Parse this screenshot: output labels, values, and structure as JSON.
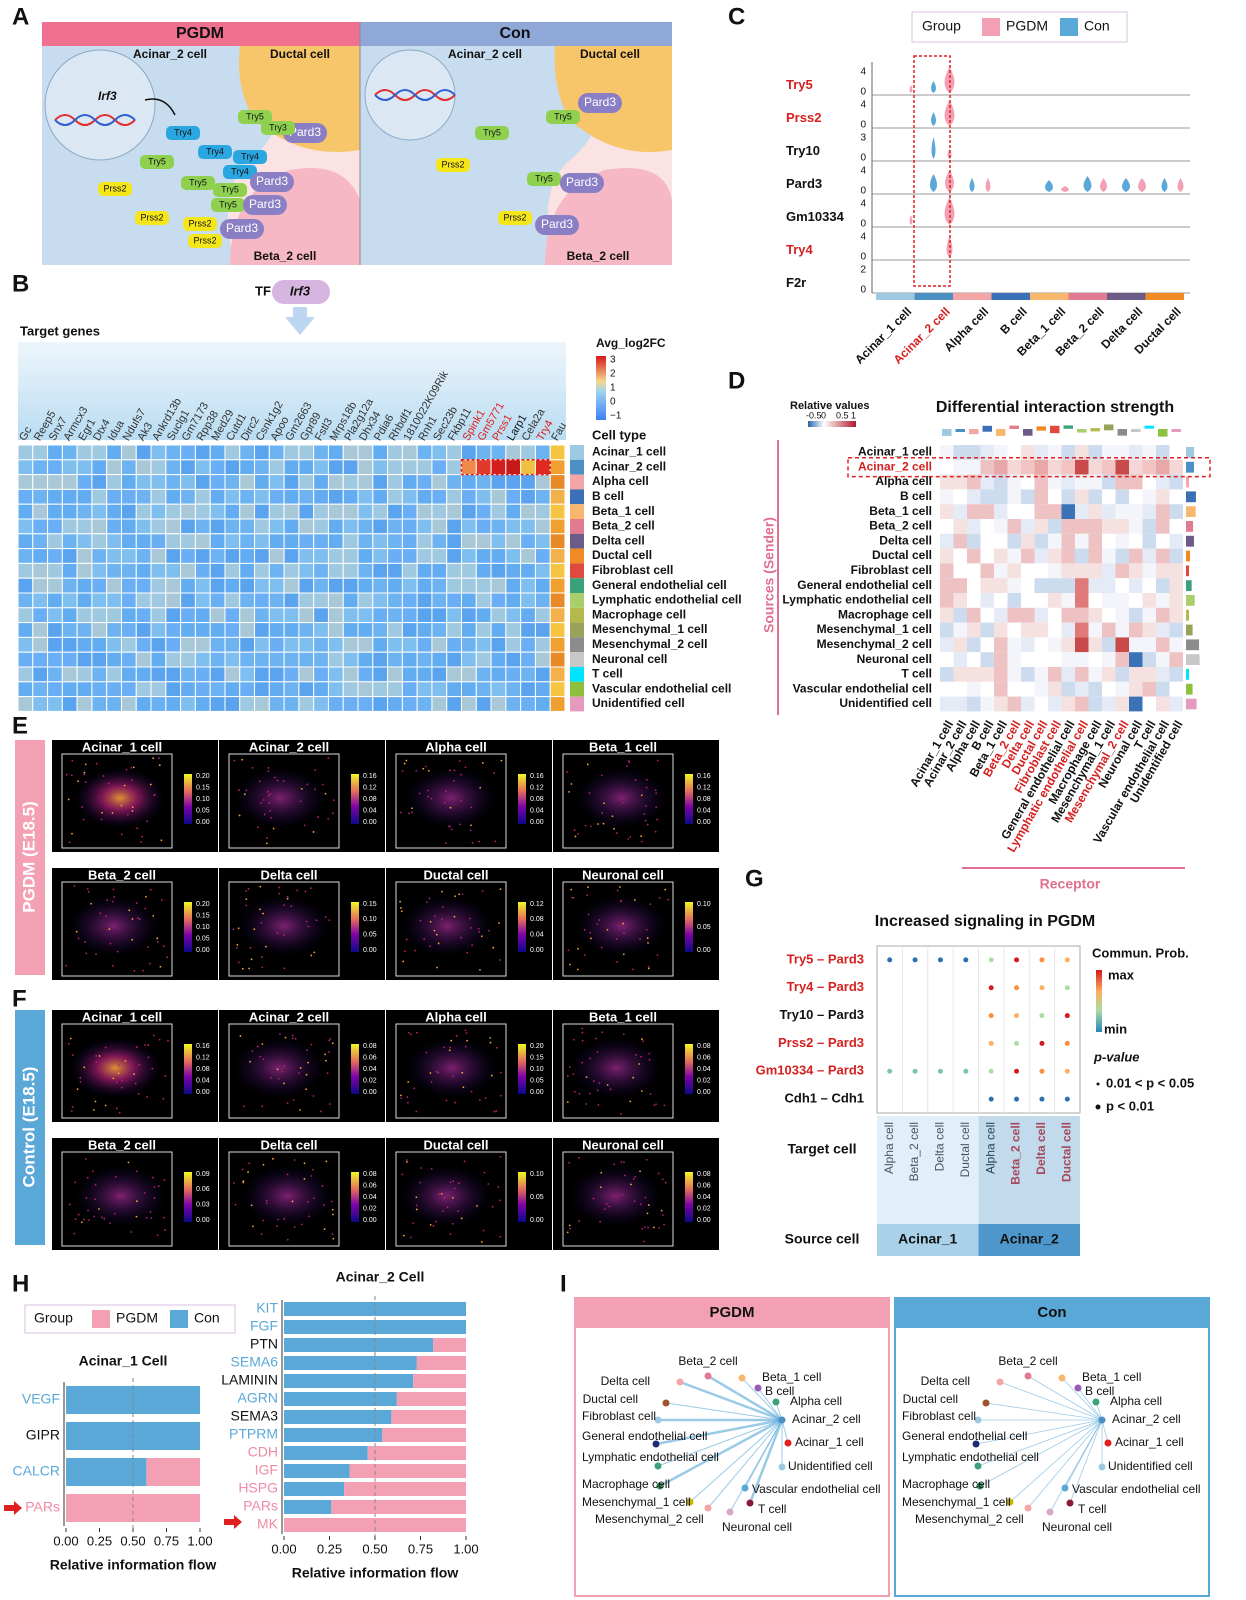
{
  "panel_labels": [
    "A",
    "B",
    "C",
    "D",
    "E",
    "F",
    "G",
    "H",
    "I"
  ],
  "A": {
    "pgdm_title": "PGDM",
    "con_title": "Con",
    "pgdm_texts": [
      "Acinar_2 cell",
      "Ductal cell",
      "Beta_2 cell",
      "Irf3"
    ],
    "con_texts": [
      "Acinar_2 cell",
      "Ductal cell",
      "Beta_2 cell"
    ],
    "pgdm_pills": [
      {
        "label": "Pard3",
        "color": "#8a7fc4"
      },
      {
        "label": "Try5",
        "color": "#8fd14f"
      },
      {
        "label": "Try3",
        "color": "#8fd14f"
      },
      {
        "label": "Try4",
        "color": "#2aa7e0"
      },
      {
        "label": "Try4",
        "color": "#2aa7e0"
      },
      {
        "label": "Try4",
        "color": "#2aa7e0"
      },
      {
        "label": "Try4",
        "color": "#2aa7e0"
      },
      {
        "label": "Try5",
        "color": "#8fd14f"
      },
      {
        "label": "Try5",
        "color": "#8fd14f"
      },
      {
        "label": "Try5",
        "color": "#8fd14f"
      },
      {
        "label": "Try5",
        "color": "#8fd14f"
      },
      {
        "label": "Pard3",
        "color": "#8a7fc4"
      },
      {
        "label": "Pard3",
        "color": "#8a7fc4"
      },
      {
        "label": "Pard3",
        "color": "#8a7fc4"
      },
      {
        "label": "Prss2",
        "color": "#f5e61a"
      },
      {
        "label": "Prss2",
        "color": "#f5e61a"
      },
      {
        "label": "Prss2",
        "color": "#f5e61a"
      },
      {
        "label": "Prss2",
        "color": "#f5e61a"
      }
    ],
    "con_pills": [
      {
        "label": "Pard3",
        "color": "#8a7fc4"
      },
      {
        "label": "Try5",
        "color": "#8fd14f"
      },
      {
        "label": "Try5",
        "color": "#8fd14f"
      },
      {
        "label": "Prss2",
        "color": "#f5e61a"
      },
      {
        "label": "Try5",
        "color": "#8fd14f"
      },
      {
        "label": "Pard3",
        "color": "#8a7fc4"
      },
      {
        "label": "Prss2",
        "color": "#f5e61a"
      },
      {
        "label": "Pard3",
        "color": "#8a7fc4"
      }
    ]
  },
  "B": {
    "tf_label": "TF",
    "tf": "Irf3",
    "target_title": "Target genes",
    "legend_title": "Avg_log2FC",
    "legend_ticks": [
      "3",
      "2",
      "1",
      "0",
      "−1"
    ],
    "cell_type_title": "Cell type",
    "genes": [
      "Gc",
      "Reep5",
      "Snx7",
      "Armcx3",
      "Egr1",
      "Dtx4",
      "Idua",
      "Ndufs7",
      "Ak3",
      "Ankrd13b",
      "Suclg1",
      "Gm7173",
      "Rpp38",
      "Med29",
      "Cutd1",
      "Dirc2",
      "Csnk1g2",
      "Apoo",
      "Gm2663",
      "Gpr89",
      "Fstl3",
      "Mrps18b",
      "Pla2g12a",
      "Dhx34",
      "Pdia6",
      "Rhbdf1",
      "1810022K09Rik",
      "Rnh1",
      "Sec23b",
      "Fkbp11",
      "Spink1",
      "Gm5771",
      "Prss1",
      "Larp1",
      "Cela2a",
      "Try4",
      "Fau"
    ],
    "gene_colors": [
      "#333",
      "#333",
      "#333",
      "#333",
      "#333",
      "#333",
      "#333",
      "#333",
      "#333",
      "#333",
      "#333",
      "#333",
      "#333",
      "#333",
      "#333",
      "#333",
      "#333",
      "#333",
      "#333",
      "#333",
      "#333",
      "#333",
      "#333",
      "#333",
      "#333",
      "#333",
      "#333",
      "#333",
      "#333",
      "#333",
      "#e0201b",
      "#e0201b",
      "#e0201b",
      "#111",
      "#333",
      "#e0201b",
      "#333"
    ],
    "cell_types": [
      "Acinar_1 cell",
      "Acinar_2 cell",
      "Alpha cell",
      "B cell",
      "Beta_1 cell",
      "Beta_2 cell",
      "Delta cell",
      "Ductal cell",
      "Fibroblast cell",
      "General endothelial cell",
      "Lymphatic endothelial cell",
      "Macrophage cell",
      "Mesenchymal_1 cell",
      "Mesenchymal_2 cell",
      "Neuronal cell",
      "T cell",
      "Vascular endothelial cell",
      "Unidentified cell"
    ],
    "cell_type_colors": [
      "#9ecae1",
      "#4a90c2",
      "#f4a6a6",
      "#3b6fb6",
      "#f7b76d",
      "#e07b91",
      "#6c5a87",
      "#f08a24",
      "#e0493e",
      "#3aa27a",
      "#a9cf6a",
      "#b5b84d",
      "#9aa15a",
      "#8c8c8c",
      "#c7c7c7",
      "#00e5ff",
      "#8fbf3f",
      "#e79ac0"
    ]
  },
  "C": {
    "legend_title": "Group",
    "groups": [
      "PGDM",
      "Con"
    ],
    "group_colors": [
      "#f4a0b4",
      "#5aa8d8"
    ],
    "genes": [
      "Try5",
      "Prss2",
      "Try10",
      "Pard3",
      "Gm10334",
      "Try4",
      "F2r"
    ],
    "gene_colors": [
      "#d62020",
      "#d62020",
      "#111",
      "#111",
      "#111",
      "#d62020",
      "#111"
    ],
    "gene_ticks": [
      [
        "4",
        "0"
      ],
      [
        "4",
        "0"
      ],
      [
        "3",
        "0"
      ],
      [
        "4",
        "0"
      ],
      [
        "4",
        "0"
      ],
      [
        "4",
        "0"
      ],
      [
        "2",
        "0"
      ]
    ],
    "cells": [
      "Acinar_1 cell",
      "Acinar_2 cell",
      "Alpha cell",
      "B cell",
      "Beta_1 cell",
      "Beta_2 cell",
      "Delta cell",
      "Ductal cell"
    ],
    "cell_colors": [
      "#111",
      "#d62020",
      "#111",
      "#111",
      "#111",
      "#111",
      "#111",
      "#111"
    ]
  },
  "D": {
    "title": "Differential interaction strength",
    "legend_title": "Relative values",
    "legend_ticks": [
      "-0.5",
      "0",
      "0.5",
      "1"
    ],
    "y_label": "Sources (Sender)",
    "x_label": "Receptor",
    "column_colors": [
      "#111",
      "#111",
      "#111",
      "#111",
      "#111",
      "#d62020",
      "#d62020",
      "#d62020",
      "#d62020",
      "#111",
      "#d62020",
      "#111",
      "#111",
      "#d62020",
      "#111",
      "#111",
      "#111",
      "#111"
    ]
  },
  "E": {
    "side_label": "PGDM (E18.5)",
    "panels": [
      {
        "title": "Acinar_1 cell",
        "ticks": [
          "0.20",
          "0.15",
          "0.10",
          "0.05",
          "0.00"
        ]
      },
      {
        "title": "Acinar_2 cell",
        "ticks": [
          "0.16",
          "0.12",
          "0.08",
          "0.04",
          "0.00"
        ]
      },
      {
        "title": "Alpha cell",
        "ticks": [
          "0.16",
          "0.12",
          "0.08",
          "0.04",
          "0.00"
        ]
      },
      {
        "title": "Beta_1 cell",
        "ticks": [
          "0.16",
          "0.12",
          "0.08",
          "0.04",
          "0.00"
        ]
      },
      {
        "title": "Beta_2 cell",
        "ticks": [
          "0.20",
          "0.15",
          "0.10",
          "0.05",
          "0.00"
        ]
      },
      {
        "title": "Delta cell",
        "ticks": [
          "0.15",
          "0.10",
          "0.05",
          "0.00"
        ]
      },
      {
        "title": "Ductal cell",
        "ticks": [
          "0.12",
          "0.08",
          "0.04",
          "0.00"
        ]
      },
      {
        "title": "Neuronal cell",
        "ticks": [
          "0.10",
          "0.05",
          "0.00"
        ]
      }
    ]
  },
  "F": {
    "side_label": "Control (E18.5)",
    "panels": [
      {
        "title": "Acinar_1 cell",
        "ticks": [
          "0.16",
          "0.12",
          "0.08",
          "0.04",
          "0.00"
        ]
      },
      {
        "title": "Acinar_2 cell",
        "ticks": [
          "0.08",
          "0.06",
          "0.04",
          "0.02",
          "0.00"
        ]
      },
      {
        "title": "Alpha cell",
        "ticks": [
          "0.20",
          "0.15",
          "0.10",
          "0.05",
          "0.00"
        ]
      },
      {
        "title": "Beta_1 cell",
        "ticks": [
          "0.08",
          "0.06",
          "0.04",
          "0.02",
          "0.00"
        ]
      },
      {
        "title": "Beta_2 cell",
        "ticks": [
          "0.09",
          "0.06",
          "0.03",
          "0.00"
        ]
      },
      {
        "title": "Delta cell",
        "ticks": [
          "0.08",
          "0.06",
          "0.04",
          "0.02",
          "0.00"
        ]
      },
      {
        "title": "Ductal cell",
        "ticks": [
          "0.10",
          "0.05",
          "0.00"
        ]
      },
      {
        "title": "Neuronal cell",
        "ticks": [
          "0.08",
          "0.06",
          "0.04",
          "0.02",
          "0.00"
        ]
      }
    ]
  },
  "G": {
    "title": "Increased signaling in PGDM",
    "pairs": [
      "Try5  – Pard3",
      "Try4  – Pard3",
      "Try10  – Pard3",
      "Prss2  – Pard3",
      "Gm10334  – Pard3",
      "Cdh1  – Cdh1"
    ],
    "pair_colors": [
      "#d62020",
      "#d62020",
      "#111",
      "#d62020",
      "#d62020",
      "#111"
    ],
    "legend_title": "Commun. Prob.",
    "max_label": "max",
    "min_label": "min",
    "p_title": "p-value",
    "p_levels": [
      "0.01 < p < 0.05",
      "p < 0.01"
    ],
    "target_title": "Target cell",
    "targets": [
      "Alpha cell",
      "Beta_2 cell",
      "Delta cell",
      "Ductal cell",
      "Alpha cell",
      "Beta_2 cell",
      "Delta cell",
      "Ductal cell"
    ],
    "target_colors": [
      "#111",
      "#111",
      "#111",
      "#111",
      "#111",
      "#d62020",
      "#d62020",
      "#d62020"
    ],
    "source_title": "Source cell",
    "sources": [
      "Acinar_1",
      "Acinar_2"
    ],
    "source_colors": [
      "#a9d2ea",
      "#4d97cc"
    ]
  },
  "H": {
    "legend_title": "Group",
    "groups": [
      "PGDM",
      "Con"
    ],
    "group_colors": [
      "#f4a0b4",
      "#5aa8d8"
    ],
    "x_label": "Relative information flow",
    "xlim": [
      0,
      1
    ],
    "xticks": [
      {
        "value": 0,
        "label": "0.00"
      },
      {
        "value": 0.25,
        "label": "0.25"
      },
      {
        "value": 0.5,
        "label": "0.50"
      },
      {
        "value": 0.75,
        "label": "0.75"
      },
      {
        "value": 1,
        "label": "1.00"
      }
    ],
    "left": {
      "title": "Acinar_1 Cell",
      "categories": [
        "VEGF",
        "GIPR",
        "CALCR",
        "PARs"
      ],
      "category_colors": [
        "#5aa8d8",
        "#111",
        "#5aa8d8",
        "#f08aa6"
      ],
      "con_values": [
        1,
        1,
        0.6,
        0
      ]
    },
    "right": {
      "title": "Acinar_2 Cell",
      "categories": [
        "KIT",
        "FGF",
        "PTN",
        "SEMA6",
        "LAMININ",
        "AGRN",
        "SEMA3",
        "PTPRM",
        "CDH",
        "IGF",
        "HSPG",
        "PARs",
        "MK"
      ],
      "category_colors": [
        "#5aa8d8",
        "#5aa8d8",
        "#111",
        "#5aa8d8",
        "#111",
        "#5aa8d8",
        "#111",
        "#5aa8d8",
        "#f08aa6",
        "#f08aa6",
        "#f08aa6",
        "#f08aa6",
        "#f08aa6"
      ],
      "con_values": [
        1,
        1,
        0.82,
        0.73,
        0.71,
        0.62,
        0.59,
        0.54,
        0.46,
        0.36,
        0.33,
        0.26,
        0
      ]
    }
  },
  "I": {
    "titles": [
      "PGDM",
      "Con"
    ],
    "title_colors": [
      "#f4a0b4",
      "#5aa8d8"
    ],
    "nodes": [
      "Beta_2 cell",
      "Beta_1 cell",
      "B cell",
      "Delta cell",
      "Alpha cell",
      "Ductal cell",
      "Fibroblast cell",
      "Acinar_2 cell",
      "Acinar_1 cell",
      "General endothelial cell",
      "Lymphatic endothelial cell",
      "Unidentified cell",
      "Macrophage cell",
      "Vascular endothelial cell",
      "Mesenchymal_1 cell",
      "T cell",
      "Mesenchymal_2 cell",
      "Neuronal cell"
    ],
    "node_colors": [
      "#e07b91",
      "#f7b76d",
      "#9b59b6",
      "#f4a6a6",
      "#3aa27a",
      "#a0522d",
      "#9ecae1",
      "#4a90c2",
      "#e0201b",
      "#1e2a78",
      "#3aa27a",
      "#9ecae1",
      "#2e8b57",
      "#5aa8d8",
      "#c9b400",
      "#8b1a3a",
      "#f4a6a6",
      "#d6a8c8"
    ]
  }
}
